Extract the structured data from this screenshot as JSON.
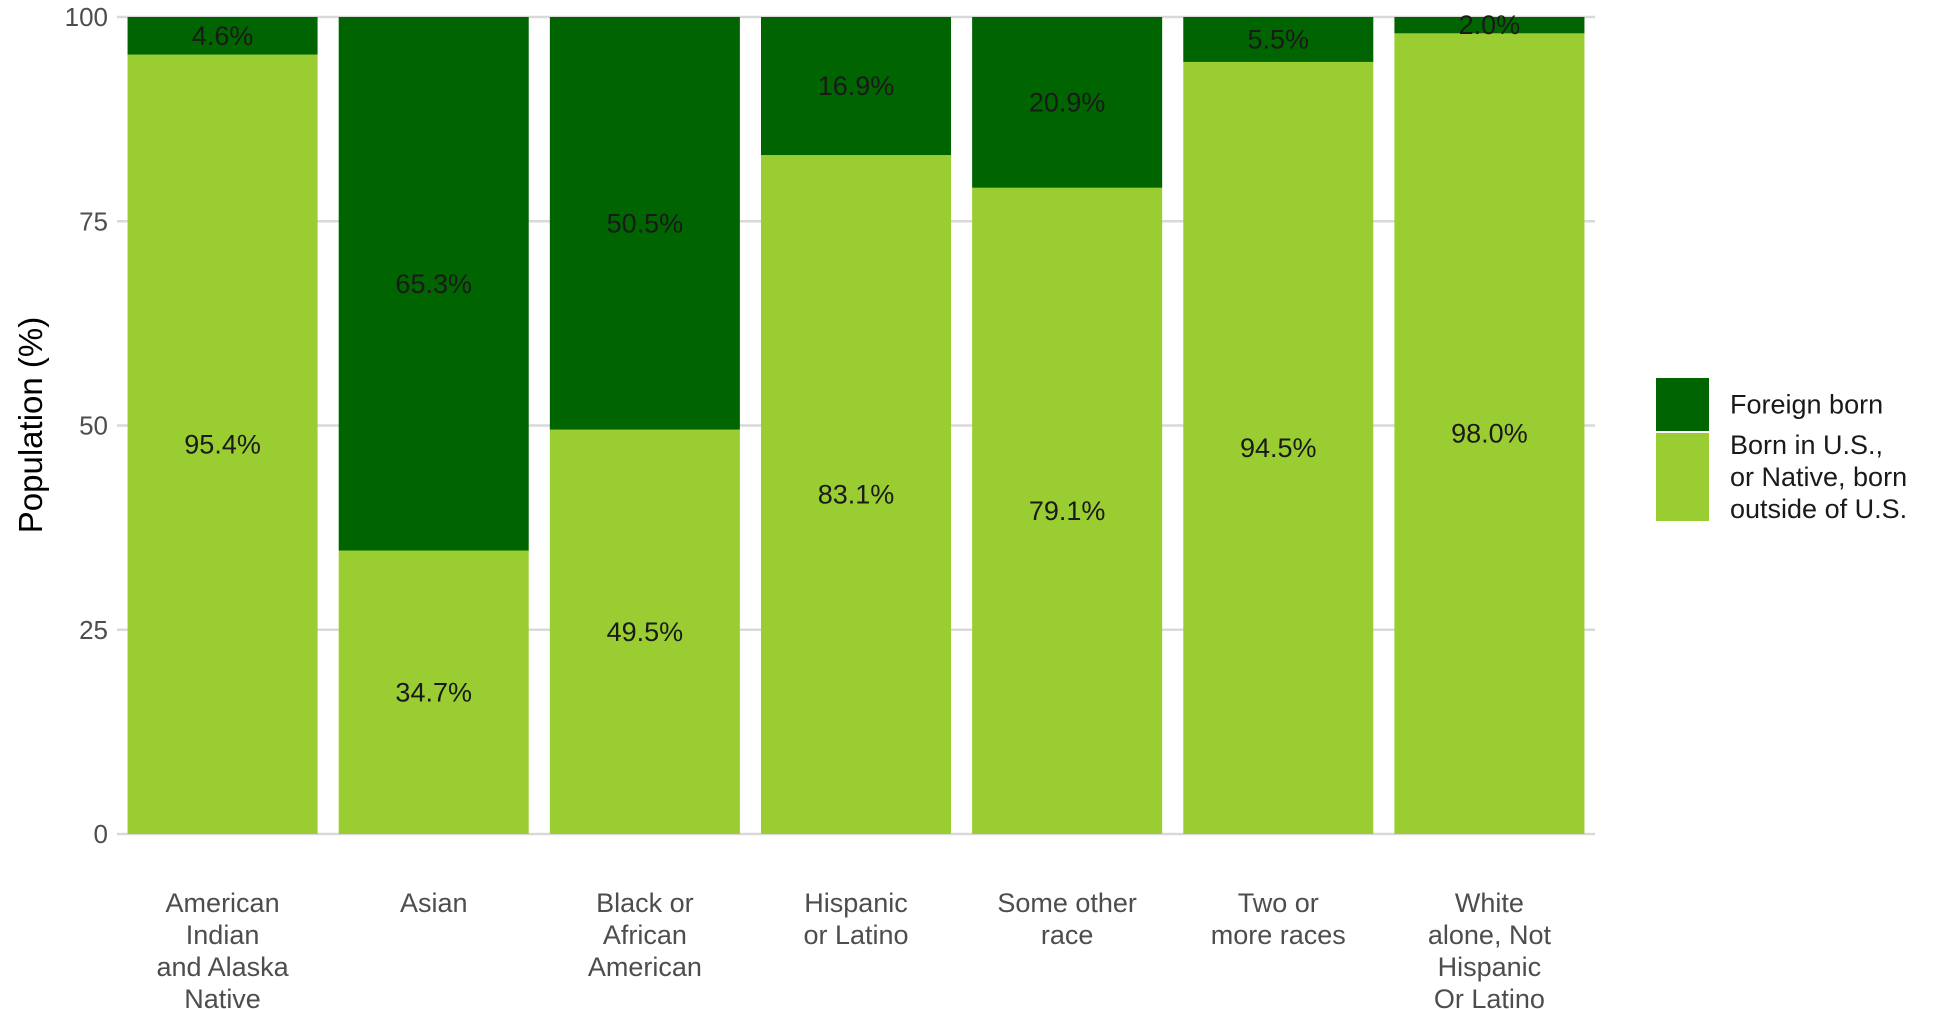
{
  "chart_data": {
    "type": "bar",
    "stacked": true,
    "categories": [
      [
        "American",
        "Indian",
        "and Alaska",
        "Native"
      ],
      [
        "Asian"
      ],
      [
        "Black or",
        "African",
        "American"
      ],
      [
        "Hispanic",
        "or Latino"
      ],
      [
        "Some other",
        "race"
      ],
      [
        "Two or",
        "more races"
      ],
      [
        "White",
        "alone, Not",
        "Hispanic",
        "Or Latino"
      ]
    ],
    "series": [
      {
        "name": "Born in U.S., or Native, born outside of U.S.",
        "legend_lines": [
          "Born in U.S.,",
          "or Native, born",
          "outside of U.S."
        ],
        "color": "#9acd32",
        "values": [
          95.4,
          34.7,
          49.5,
          83.1,
          79.1,
          94.5,
          98.0
        ],
        "labels": [
          "95.4%",
          "34.7%",
          "49.5%",
          "83.1%",
          "79.1%",
          "94.5%",
          "98.0%"
        ]
      },
      {
        "name": "Foreign born",
        "legend_lines": [
          "Foreign born"
        ],
        "color": "#006400",
        "values": [
          4.6,
          65.3,
          50.5,
          16.9,
          20.9,
          5.5,
          2.0
        ],
        "labels": [
          "4.6%",
          "65.3%",
          "50.5%",
          "16.9%",
          "20.9%",
          "5.5%",
          "2.0%"
        ]
      }
    ],
    "ylabel": "Population (%)",
    "xlabel": "",
    "ylim": [
      0,
      100
    ],
    "yticks": [
      0,
      25,
      50,
      75,
      100
    ],
    "grid": true,
    "legend_position": "right",
    "legend_order": [
      "Foreign born",
      "Born in U.S., or Native, born outside of U.S."
    ]
  }
}
